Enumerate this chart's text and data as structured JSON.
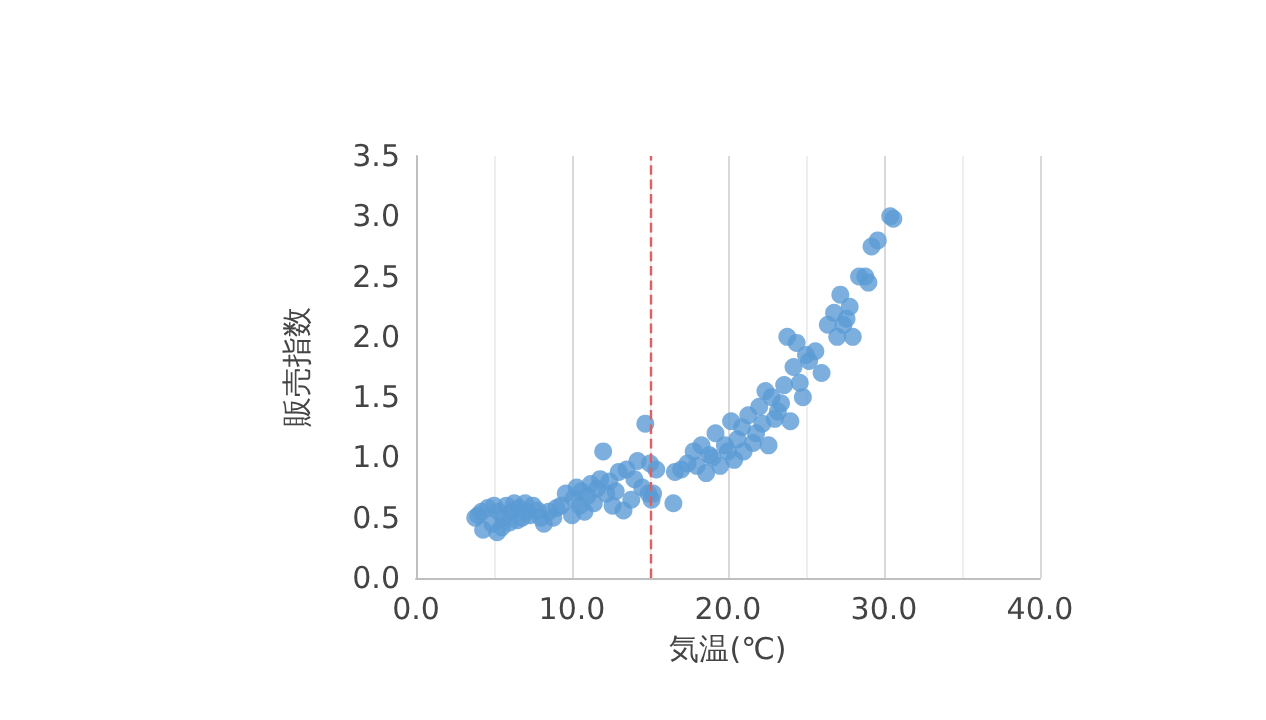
{
  "chart_data": {
    "type": "scatter",
    "xlabel": "気温(℃)",
    "ylabel": "販売指数",
    "xlim": [
      0,
      40
    ],
    "xticks": [
      {
        "value": 0,
        "label": "0.0"
      },
      {
        "value": 10,
        "label": "10.0"
      },
      {
        "value": 20,
        "label": "20.0"
      },
      {
        "value": 30,
        "label": "30.0"
      },
      {
        "value": 40,
        "label": "40.0"
      }
    ],
    "ylim": [
      0,
      3.5
    ],
    "yticks": [
      {
        "value": 0,
        "label": "0.0"
      },
      {
        "value": 0.5,
        "label": "0.5"
      },
      {
        "value": 1,
        "label": "1.0"
      },
      {
        "value": 1.5,
        "label": "1.5"
      },
      {
        "value": 2,
        "label": "2.0"
      },
      {
        "value": 2.5,
        "label": "2.5"
      },
      {
        "value": 3,
        "label": "3.0"
      },
      {
        "value": 3.5,
        "label": "3.5"
      }
    ],
    "grid": "x",
    "marker": "circle",
    "ref_lines": [
      {
        "axis": "x",
        "value": 15,
        "color": "#e06060",
        "line_style": "dashed"
      }
    ],
    "series": [
      {
        "color": "#5b9bd5",
        "x": [
          3.8,
          4.0,
          4.2,
          4.3,
          4.6,
          4.9,
          5.0,
          5.2,
          5.3,
          5.5,
          5.6,
          5.8,
          6.0,
          6.1,
          6.3,
          6.5,
          6.6,
          6.8,
          7.0,
          7.1,
          7.3,
          7.5,
          7.8,
          8.0,
          8.2,
          8.5,
          8.8,
          9.0,
          9.3,
          9.6,
          10.0,
          10.1,
          10.3,
          10.5,
          10.6,
          10.8,
          11.0,
          11.2,
          11.4,
          11.6,
          11.8,
          12.0,
          12.2,
          12.4,
          12.6,
          12.8,
          13.0,
          13.3,
          13.5,
          13.8,
          14.0,
          14.2,
          14.5,
          14.7,
          14.9,
          15.0,
          15.1,
          15.2,
          15.4,
          16.5,
          16.6,
          17.0,
          17.4,
          17.8,
          18.0,
          18.3,
          18.6,
          18.8,
          19.0,
          19.2,
          19.5,
          19.8,
          20.0,
          20.2,
          20.4,
          20.6,
          20.9,
          21.0,
          21.3,
          21.6,
          21.8,
          22.0,
          22.2,
          22.4,
          22.6,
          22.8,
          23.0,
          23.2,
          23.4,
          23.6,
          23.8,
          24.0,
          24.2,
          24.4,
          24.6,
          24.8,
          25.0,
          25.2,
          25.6,
          26.0,
          26.4,
          26.8,
          27.0,
          27.2,
          27.4,
          27.6,
          27.8,
          28.0,
          28.4,
          28.8,
          29.0,
          29.2,
          29.6,
          30.4,
          30.6
        ],
        "values": [
          0.5,
          0.52,
          0.55,
          0.4,
          0.58,
          0.45,
          0.6,
          0.38,
          0.55,
          0.42,
          0.5,
          0.6,
          0.46,
          0.55,
          0.62,
          0.48,
          0.58,
          0.5,
          0.62,
          0.55,
          0.52,
          0.6,
          0.56,
          0.5,
          0.45,
          0.55,
          0.5,
          0.58,
          0.6,
          0.7,
          0.52,
          0.66,
          0.75,
          0.6,
          0.72,
          0.55,
          0.68,
          0.78,
          0.62,
          0.74,
          0.82,
          1.05,
          0.7,
          0.8,
          0.6,
          0.72,
          0.88,
          0.56,
          0.9,
          0.65,
          0.82,
          0.97,
          0.75,
          1.28,
          0.7,
          0.95,
          0.65,
          0.7,
          0.9,
          0.62,
          0.88,
          0.9,
          0.95,
          1.05,
          0.93,
          1.1,
          0.87,
          1.02,
          1.0,
          1.2,
          0.93,
          1.1,
          1.05,
          1.3,
          0.98,
          1.15,
          1.25,
          1.05,
          1.35,
          1.12,
          1.2,
          1.42,
          1.28,
          1.55,
          1.1,
          1.5,
          1.32,
          1.38,
          1.45,
          1.6,
          2.0,
          1.3,
          1.75,
          1.95,
          1.62,
          1.5,
          1.85,
          1.8,
          1.88,
          1.7,
          2.1,
          2.2,
          2.0,
          2.35,
          2.1,
          2.15,
          2.25,
          2.0,
          2.5,
          2.5,
          2.45,
          2.75,
          2.8,
          3.0,
          2.98
        ]
      }
    ]
  }
}
